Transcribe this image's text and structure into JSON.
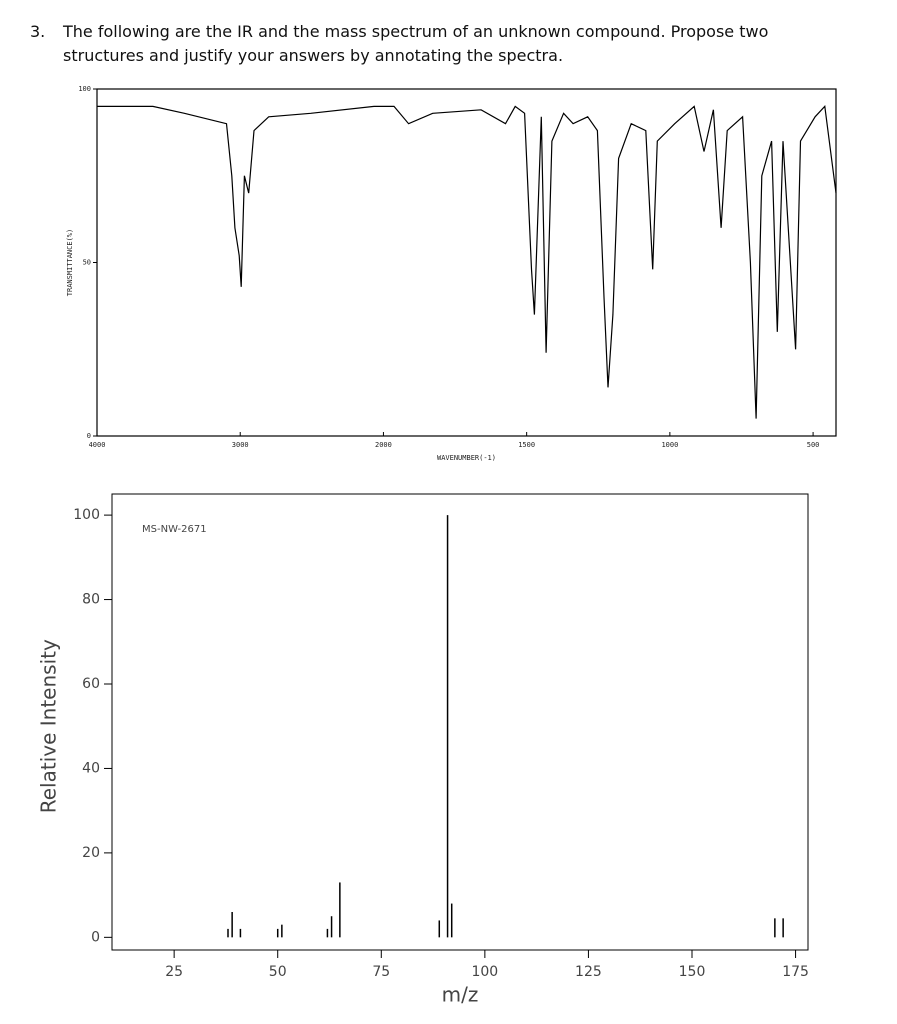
{
  "question": {
    "number": "3.",
    "text": "The following are the IR and the mass spectrum of an unknown compound. Propose two structures and justify your answers by annotating the spectra."
  },
  "chart_data": [
    {
      "type": "line",
      "xlabel": "WAVENUMBER(-1)",
      "ylabel": "TRANSMITTANCE(%)",
      "x_scale_doubles_below": 2000,
      "x": [
        4000,
        3610,
        3390,
        3096,
        3059,
        3037,
        3007,
        2993,
        2971,
        2941,
        2904,
        2801,
        2507,
        2066,
        1963,
        1912,
        1828,
        1659,
        1574,
        1540,
        1507,
        1483,
        1473,
        1449,
        1432,
        1412,
        1371,
        1338,
        1287,
        1253,
        1230,
        1216,
        1199,
        1179,
        1135,
        1084,
        1060,
        1044,
        983,
        915,
        881,
        848,
        821,
        800,
        746,
        719,
        699,
        679,
        645,
        625,
        605,
        561,
        544,
        493,
        459,
        420
      ],
      "values": [
        95,
        95,
        93,
        90,
        75,
        60,
        52,
        43,
        75,
        70,
        88,
        92,
        93,
        95,
        95,
        90,
        93,
        94,
        90,
        95,
        93,
        48,
        35,
        92,
        24,
        85,
        93,
        90,
        92,
        88,
        40,
        14,
        35,
        80,
        90,
        88,
        48,
        85,
        90,
        95,
        82,
        94,
        60,
        88,
        92,
        50,
        5,
        75,
        85,
        30,
        85,
        25,
        85,
        92,
        95,
        70
      ],
      "color": "#000000",
      "xlim": [
        4000,
        420
      ],
      "ylim": [
        0,
        100
      ],
      "xticks": [
        4000,
        3000,
        2000,
        1500,
        1000,
        500
      ],
      "yticks": [
        0,
        50,
        100
      ]
    },
    {
      "type": "bar",
      "xlabel": "m/z",
      "ylabel": "Relative Intensity",
      "annotation": "MS-NW-2671",
      "x": [
        38,
        39,
        41,
        50,
        51,
        62,
        63,
        65,
        89,
        91,
        92,
        170,
        172
      ],
      "values": [
        2,
        6,
        2,
        2,
        3,
        2,
        5,
        13,
        4,
        100,
        8,
        4.5,
        4.5
      ],
      "color": "#000000",
      "xlim": [
        10,
        178
      ],
      "ylim": [
        -3,
        105
      ],
      "xticks": [
        25,
        50,
        75,
        100,
        125,
        150,
        175
      ],
      "yticks": [
        0,
        20,
        40,
        60,
        80,
        100
      ]
    }
  ]
}
